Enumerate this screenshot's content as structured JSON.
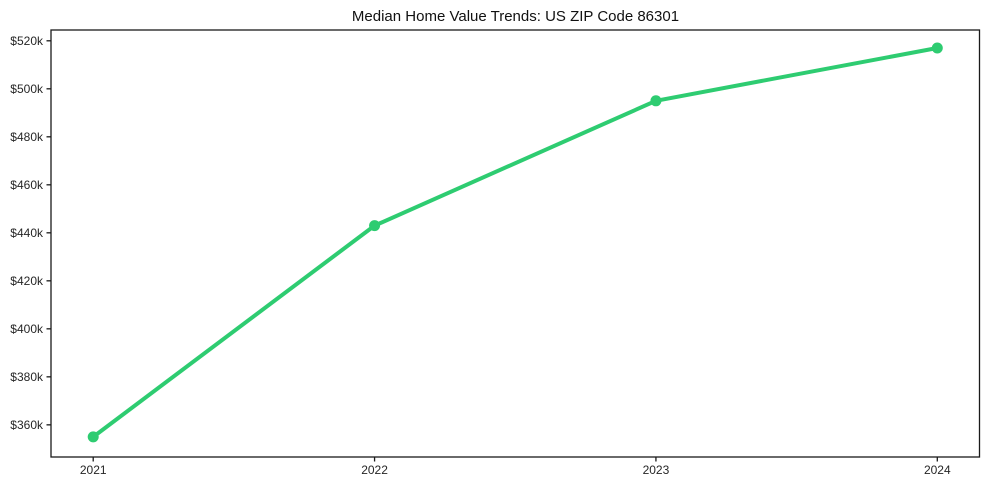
{
  "chart": {
    "title": "Median Home Value Trends: US ZIP Code 86301",
    "background_color": "#ffffff",
    "line_color": "#2ecc71",
    "marker_color": "#2ecc71",
    "spine_color": "#1a1a1a",
    "tick_label_color": "#262626",
    "title_color": "#111111"
  },
  "chart_data": {
    "type": "line",
    "title": "Median Home Value Trends: US ZIP Code 86301",
    "series_name": "Median Home Value",
    "x": [
      2021,
      2022,
      2023,
      2024
    ],
    "values": [
      355000,
      443000,
      495000,
      517000
    ],
    "x_tick_labels": [
      "2021",
      "2022",
      "2023",
      "2024"
    ],
    "y_ticks": [
      360000,
      380000,
      400000,
      420000,
      440000,
      460000,
      480000,
      500000,
      520000
    ],
    "y_tick_labels": [
      "$360k",
      "$380k",
      "$400k",
      "$420k",
      "$440k",
      "$460k",
      "$480k",
      "$500k",
      "$520k"
    ],
    "xlabel": "",
    "ylabel": "",
    "xlim": [
      2020.85,
      2024.15
    ],
    "ylim": [
      346600,
      524500
    ],
    "grid": false,
    "legend_position": "none",
    "marker": "circle",
    "marker_radius": 5.5,
    "line_width": 4
  }
}
